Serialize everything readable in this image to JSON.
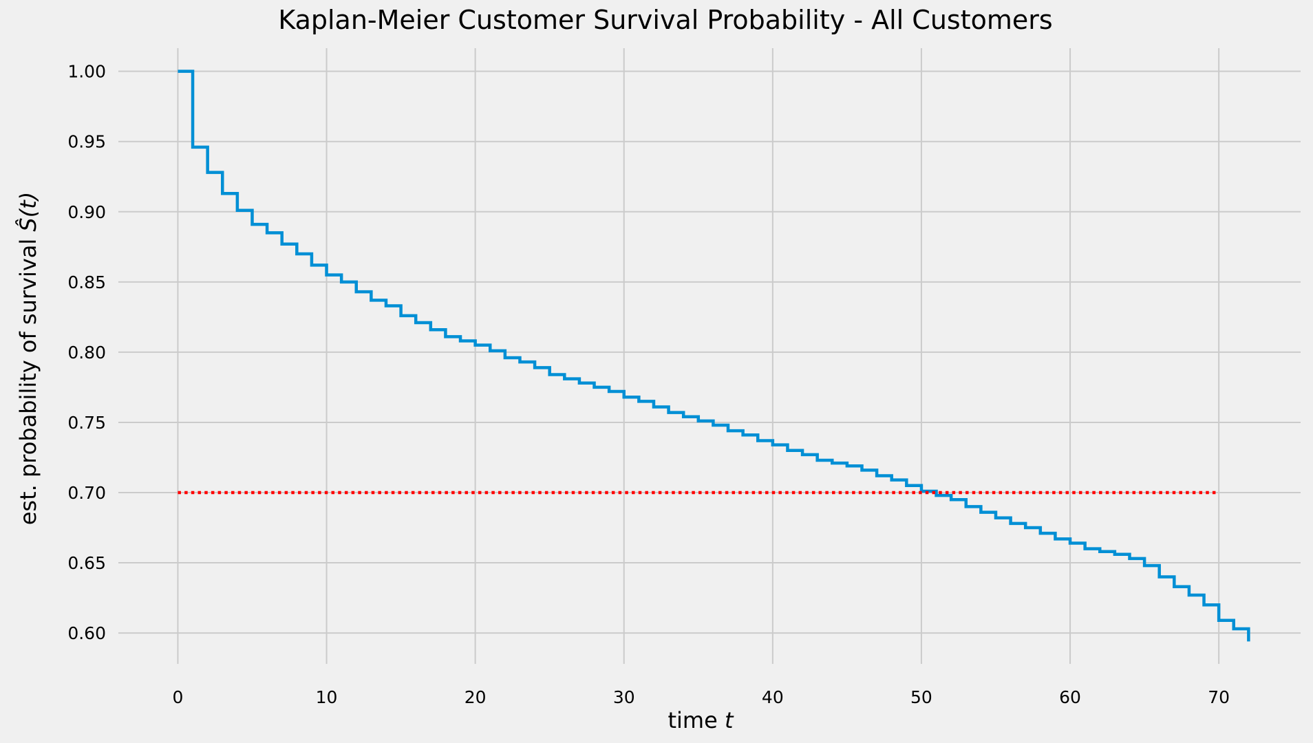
{
  "chart_data": {
    "type": "line",
    "title": "Kaplan-Meier Customer Survival Probability - All Customers",
    "xlabel_prefix": "time ",
    "xlabel_var": "t",
    "ylabel_prefix": "est. probability of survival ",
    "ylabel_var": "Ŝ(t)",
    "xlim": [
      -4,
      75.5
    ],
    "ylim": [
      0.578,
      1.0165
    ],
    "x_ticks": [
      0,
      10,
      20,
      30,
      40,
      50,
      60,
      70
    ],
    "x_tick_labels": [
      "0",
      "10",
      "20",
      "30",
      "40",
      "50",
      "60",
      "70"
    ],
    "y_ticks": [
      0.6,
      0.65,
      0.7,
      0.75,
      0.8,
      0.85,
      0.9,
      0.95,
      1.0
    ],
    "y_tick_labels": [
      "0.60",
      "0.65",
      "0.70",
      "0.75",
      "0.80",
      "0.85",
      "0.90",
      "0.95",
      "1.00"
    ],
    "grid": true,
    "series": [
      {
        "style": "step-post",
        "color": "#008fd5",
        "x": [
          0,
          1,
          2,
          3,
          4,
          5,
          6,
          7,
          8,
          9,
          10,
          11,
          12,
          13,
          14,
          15,
          16,
          17,
          18,
          19,
          20,
          21,
          22,
          23,
          24,
          25,
          26,
          27,
          28,
          29,
          30,
          31,
          32,
          33,
          34,
          35,
          36,
          37,
          38,
          39,
          40,
          41,
          42,
          43,
          44,
          45,
          46,
          47,
          48,
          49,
          50,
          51,
          52,
          53,
          54,
          55,
          56,
          57,
          58,
          59,
          60,
          61,
          62,
          63,
          64,
          65,
          66,
          67,
          68,
          69,
          70,
          71,
          72
        ],
        "y": [
          1.0,
          0.946,
          0.928,
          0.913,
          0.901,
          0.891,
          0.885,
          0.877,
          0.87,
          0.862,
          0.855,
          0.85,
          0.843,
          0.837,
          0.833,
          0.826,
          0.821,
          0.816,
          0.811,
          0.808,
          0.805,
          0.801,
          0.796,
          0.793,
          0.789,
          0.784,
          0.781,
          0.778,
          0.775,
          0.772,
          0.768,
          0.765,
          0.761,
          0.757,
          0.754,
          0.751,
          0.748,
          0.744,
          0.741,
          0.737,
          0.734,
          0.73,
          0.727,
          0.723,
          0.721,
          0.719,
          0.716,
          0.712,
          0.709,
          0.705,
          0.701,
          0.698,
          0.695,
          0.69,
          0.686,
          0.682,
          0.678,
          0.675,
          0.671,
          0.667,
          0.664,
          0.66,
          0.658,
          0.656,
          0.653,
          0.648,
          0.64,
          0.633,
          0.627,
          0.62,
          0.609,
          0.603,
          0.594
        ]
      },
      {
        "style": "dotted",
        "color": "#ff0000",
        "x": [
          0,
          70
        ],
        "y": [
          0.7,
          0.7
        ]
      }
    ]
  }
}
